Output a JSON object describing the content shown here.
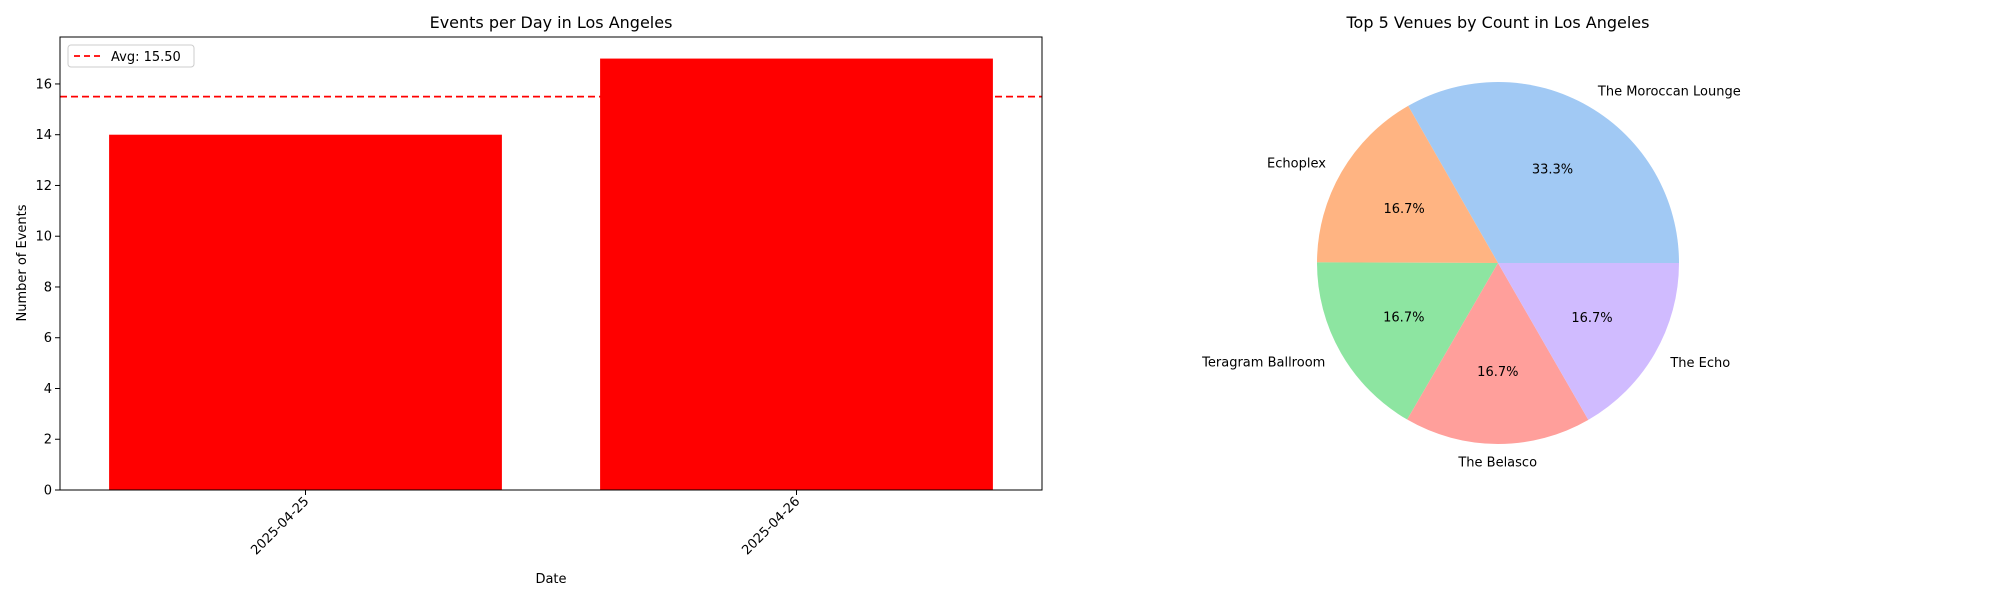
{
  "chart_data": [
    {
      "type": "bar",
      "title": "Events per Day in Los Angeles",
      "xlabel": "Date",
      "ylabel": "Number of Events",
      "categories": [
        "2025-04-25",
        "2025-04-26"
      ],
      "values": [
        14,
        17
      ],
      "ylim": [
        0,
        17.85
      ],
      "yticks": [
        "0",
        "2",
        "4",
        "6",
        "8",
        "10",
        "12",
        "14",
        "16"
      ],
      "bar_color": "#ff0000",
      "reference_line": {
        "value": 15.5,
        "label": "Avg: 15.50",
        "color": "#ff0000",
        "style": "dashed"
      },
      "legend_position": "upper-left",
      "grid": false
    },
    {
      "type": "pie",
      "title": "Top 5 Venues by Count in Los Angeles",
      "slices": [
        {
          "label": "The Moroccan Lounge",
          "value": 33.3,
          "pct": "33.3%",
          "color": "#a1c9f4"
        },
        {
          "label": "Echoplex",
          "value": 16.7,
          "pct": "16.7%",
          "color": "#ffb482"
        },
        {
          "label": "Teragram Ballroom",
          "value": 16.7,
          "pct": "16.7%",
          "color": "#8de5a1"
        },
        {
          "label": "The Belasco",
          "value": 16.7,
          "pct": "16.7%",
          "color": "#ff9f9b"
        },
        {
          "label": "The Echo",
          "value": 16.7,
          "pct": "16.7%",
          "color": "#d0bbff"
        }
      ]
    }
  ]
}
